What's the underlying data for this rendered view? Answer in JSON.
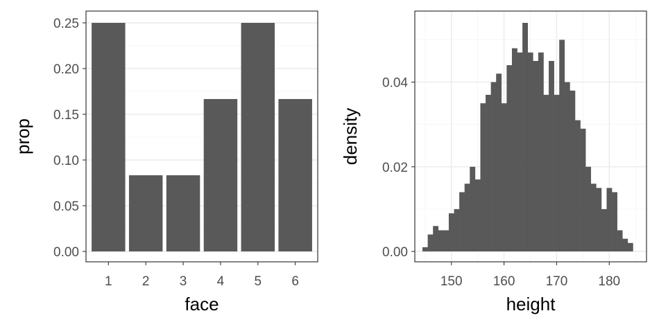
{
  "chart_data": [
    {
      "type": "bar",
      "xlabel": "face",
      "ylabel": "prop",
      "categories": [
        "1",
        "2",
        "3",
        "4",
        "5",
        "6"
      ],
      "values": [
        0.25,
        0.0833,
        0.0833,
        0.1667,
        0.25,
        0.1667
      ],
      "ylim": [
        0,
        0.25
      ],
      "yticks": [
        0,
        0.05,
        0.1,
        0.15,
        0.2,
        0.25
      ],
      "ytick_labels": [
        "0.00",
        "0.05",
        "0.10",
        "0.15",
        "0.20",
        "0.25"
      ],
      "grid": true,
      "bar_color": "#595959"
    },
    {
      "type": "bar",
      "subtype": "histogram",
      "xlabel": "height",
      "ylabel": "density",
      "bin_width": 1,
      "x": [
        145,
        146,
        147,
        148,
        149,
        150,
        151,
        152,
        153,
        154,
        155,
        156,
        157,
        158,
        159,
        160,
        161,
        162,
        163,
        164,
        165,
        166,
        167,
        168,
        169,
        170,
        171,
        172,
        173,
        174,
        175,
        176,
        177,
        178,
        179,
        180,
        181,
        182,
        183,
        184
      ],
      "values": [
        0.001,
        0.004,
        0.006,
        0.005,
        0.005,
        0.009,
        0.01,
        0.014,
        0.016,
        0.02,
        0.017,
        0.035,
        0.037,
        0.04,
        0.042,
        0.035,
        0.044,
        0.048,
        0.047,
        0.054,
        0.047,
        0.045,
        0.047,
        0.037,
        0.045,
        0.037,
        0.05,
        0.04,
        0.038,
        0.031,
        0.029,
        0.02,
        0.016,
        0.015,
        0.01,
        0.015,
        0.014,
        0.005,
        0.003,
        0.002
      ],
      "xlim": [
        144.5,
        185.5
      ],
      "ylim": [
        0,
        0.054
      ],
      "xticks": [
        150,
        160,
        170,
        180
      ],
      "xtick_labels": [
        "150",
        "160",
        "170",
        "180"
      ],
      "yticks": [
        0,
        0.02,
        0.04
      ],
      "ytick_labels": [
        "0.00",
        "0.02",
        "0.04"
      ],
      "grid": true,
      "bar_color": "#595959"
    }
  ]
}
